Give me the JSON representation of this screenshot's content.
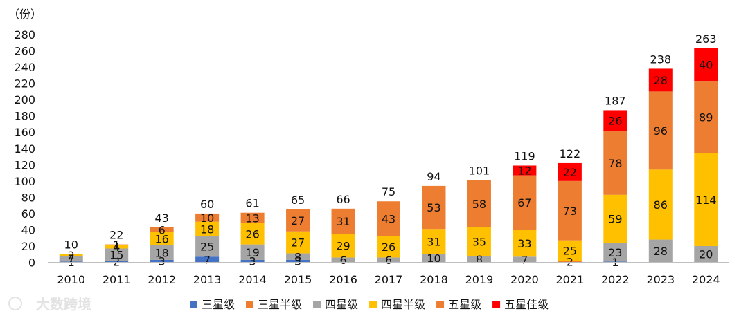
{
  "chart_data": {
    "type": "bar",
    "stacked": true,
    "unit_label": "（份）",
    "categories": [
      "2010",
      "2011",
      "2012",
      "2013",
      "2014",
      "2015",
      "2016",
      "2017",
      "2018",
      "2019",
      "2020",
      "2021",
      "2022",
      "2023",
      "2024"
    ],
    "ylim": [
      0,
      280
    ],
    "yticks": [
      0,
      20,
      40,
      60,
      80,
      100,
      120,
      140,
      160,
      180,
      200,
      220,
      240,
      260,
      280
    ],
    "totals": [
      10,
      22,
      43,
      60,
      61,
      65,
      66,
      75,
      94,
      101,
      119,
      122,
      187,
      238,
      263
    ],
    "legend_position": "bottom",
    "series": [
      {
        "name": "三星级",
        "color": "#4472C4",
        "values": [
          1,
          2,
          3,
          7,
          3,
          3,
          0,
          0,
          0,
          0,
          0,
          0,
          1,
          0,
          0
        ]
      },
      {
        "name": "三星半级",
        "color": "#ED7D31",
        "values": [
          0,
          0,
          0,
          0,
          0,
          0,
          0,
          0,
          0,
          0,
          0,
          2,
          0,
          0,
          0
        ]
      },
      {
        "name": "四星级",
        "color": "#A5A5A5",
        "values": [
          7,
          15,
          18,
          25,
          19,
          8,
          6,
          6,
          10,
          8,
          7,
          0,
          23,
          28,
          20
        ]
      },
      {
        "name": "四星半级",
        "color": "#FFC000",
        "values": [
          2,
          4,
          16,
          18,
          26,
          27,
          29,
          26,
          31,
          35,
          33,
          25,
          59,
          86,
          114
        ]
      },
      {
        "name": "五星级",
        "color": "#ED7D31",
        "values": [
          0,
          1,
          6,
          10,
          13,
          27,
          31,
          43,
          53,
          58,
          67,
          73,
          78,
          96,
          89
        ]
      },
      {
        "name": "五星佳级",
        "color": "#FF0000",
        "values": [
          0,
          0,
          0,
          0,
          0,
          0,
          0,
          0,
          0,
          0,
          12,
          22,
          26,
          28,
          40
        ]
      }
    ]
  },
  "watermark": {
    "text": "大数跨境"
  }
}
